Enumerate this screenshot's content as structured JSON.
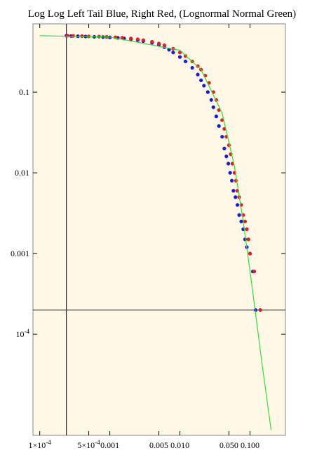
{
  "chart_data": {
    "type": "scatter",
    "title": "Log Log Left Tail Blue, Right Red, (Lognormal Normal Green)",
    "x_scale": "log",
    "y_scale": "log",
    "xlim": [
      8e-05,
      0.32
    ],
    "ylim": [
      5.6e-06,
      0.7
    ],
    "x_ticks": [
      {
        "value": 0.0001,
        "label": "1×10",
        "sup": "-4"
      },
      {
        "value": 0.0005,
        "label": "5×10",
        "sup": "-4"
      },
      {
        "value": 0.001,
        "label": "0.001",
        "sup": ""
      },
      {
        "value": 0.005,
        "label": "0.005",
        "sup": ""
      },
      {
        "value": 0.01,
        "label": "0.010",
        "sup": ""
      },
      {
        "value": 0.05,
        "label": "0.050",
        "sup": ""
      },
      {
        "value": 0.1,
        "label": "0.100",
        "sup": ""
      }
    ],
    "y_ticks": [
      {
        "value": 0.1,
        "label": "0.1",
        "sup": ""
      },
      {
        "value": 0.01,
        "label": "0.01",
        "sup": ""
      },
      {
        "value": 0.001,
        "label": "0.001",
        "sup": ""
      },
      {
        "value": 0.0001,
        "label": "10",
        "sup": "-4"
      }
    ],
    "axes_origin": {
      "x": 0.00024,
      "y": 0.0002
    },
    "series": [
      {
        "color": "#1a1ad6",
        "points": [
          [
            0.00024,
            0.5
          ],
          [
            0.00028,
            0.495
          ],
          [
            0.00035,
            0.492
          ],
          [
            0.00045,
            0.488
          ],
          [
            0.0006,
            0.484
          ],
          [
            0.0008,
            0.48
          ],
          [
            0.001,
            0.476
          ],
          [
            0.0013,
            0.47
          ],
          [
            0.0016,
            0.462
          ],
          [
            0.002,
            0.452
          ],
          [
            0.0025,
            0.44
          ],
          [
            0.003,
            0.428
          ],
          [
            0.004,
            0.408
          ],
          [
            0.005,
            0.385
          ],
          [
            0.006,
            0.36
          ],
          [
            0.007,
            0.335
          ],
          [
            0.008,
            0.31
          ],
          [
            0.01,
            0.272
          ],
          [
            0.012,
            0.24
          ],
          [
            0.015,
            0.2
          ],
          [
            0.018,
            0.165
          ],
          [
            0.02,
            0.14
          ],
          [
            0.022,
            0.12
          ],
          [
            0.025,
            0.1
          ],
          [
            0.028,
            0.08
          ],
          [
            0.03,
            0.065
          ],
          [
            0.033,
            0.05
          ],
          [
            0.036,
            0.038
          ],
          [
            0.04,
            0.028
          ],
          [
            0.043,
            0.02
          ],
          [
            0.046,
            0.016
          ],
          [
            0.049,
            0.013
          ],
          [
            0.052,
            0.01
          ],
          [
            0.055,
            0.008
          ],
          [
            0.058,
            0.006
          ],
          [
            0.062,
            0.005
          ],
          [
            0.066,
            0.004
          ],
          [
            0.07,
            0.003
          ],
          [
            0.075,
            0.0025
          ],
          [
            0.08,
            0.002
          ],
          [
            0.085,
            0.0015
          ],
          [
            0.09,
            0.0012
          ],
          [
            0.1,
            0.001
          ],
          [
            0.11,
            0.0006
          ],
          [
            0.12,
            0.0002
          ]
        ]
      },
      {
        "color": "#e02020",
        "points": [
          [
            0.00025,
            0.5
          ],
          [
            0.0003,
            0.497
          ],
          [
            0.0004,
            0.494
          ],
          [
            0.0005,
            0.49
          ],
          [
            0.0007,
            0.487
          ],
          [
            0.0009,
            0.483
          ],
          [
            0.0012,
            0.478
          ],
          [
            0.0015,
            0.472
          ],
          [
            0.002,
            0.462
          ],
          [
            0.0025,
            0.452
          ],
          [
            0.003,
            0.44
          ],
          [
            0.004,
            0.42
          ],
          [
            0.005,
            0.4
          ],
          [
            0.006,
            0.38
          ],
          [
            0.008,
            0.345
          ],
          [
            0.01,
            0.31
          ],
          [
            0.012,
            0.28
          ],
          [
            0.015,
            0.24
          ],
          [
            0.018,
            0.21
          ],
          [
            0.02,
            0.19
          ],
          [
            0.023,
            0.16
          ],
          [
            0.026,
            0.13
          ],
          [
            0.03,
            0.1
          ],
          [
            0.033,
            0.08
          ],
          [
            0.036,
            0.06
          ],
          [
            0.04,
            0.045
          ],
          [
            0.043,
            0.035
          ],
          [
            0.046,
            0.028
          ],
          [
            0.05,
            0.022
          ],
          [
            0.053,
            0.017
          ],
          [
            0.056,
            0.013
          ],
          [
            0.06,
            0.01
          ],
          [
            0.063,
            0.008
          ],
          [
            0.066,
            0.006
          ],
          [
            0.07,
            0.005
          ],
          [
            0.075,
            0.004
          ],
          [
            0.08,
            0.003
          ],
          [
            0.085,
            0.0025
          ],
          [
            0.09,
            0.002
          ],
          [
            0.095,
            0.0015
          ],
          [
            0.1,
            0.001
          ],
          [
            0.115,
            0.0006
          ],
          [
            0.14,
            0.0002
          ]
        ]
      },
      {
        "color": "#33dd33",
        "type": "line",
        "points": [
          [
            0.0001,
            0.5
          ],
          [
            0.001,
            0.48
          ],
          [
            0.01,
            0.33
          ],
          [
            0.02,
            0.19
          ],
          [
            0.04,
            0.055
          ],
          [
            0.06,
            0.012
          ],
          [
            0.08,
            0.0025
          ],
          [
            0.1,
            0.0006
          ],
          [
            0.12,
            0.00018
          ],
          [
            0.15,
            4e-05
          ],
          [
            0.2,
            6.5e-06
          ]
        ]
      }
    ]
  }
}
